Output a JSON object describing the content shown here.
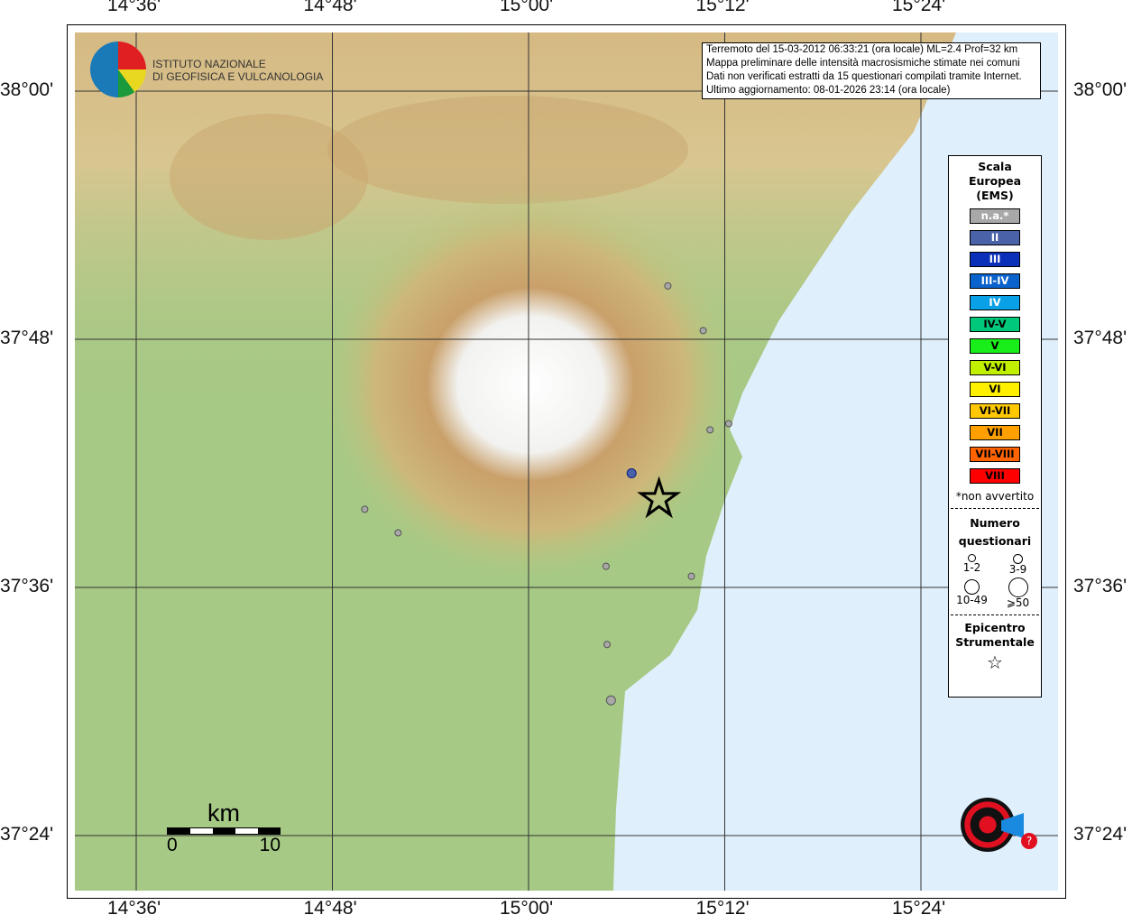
{
  "axes": {
    "lon_ticks": [
      "14°36'",
      "14°48'",
      "15°00'",
      "15°12'",
      "15°24'"
    ],
    "lat_ticks": [
      "38°00'",
      "37°48'",
      "37°36'",
      "37°24'"
    ]
  },
  "info": {
    "lines": [
      "Terremoto del 15-03-2012 06:33:21 (ora locale) ML=2.4 Prof=32 km",
      "Mappa preliminare delle intensità macrosismiche stimate nei comuni",
      "Dati non verificati estratti da 15 questionari compilati tramite Internet.",
      "Ultimo aggiornamento: 08-01-2026 23:14 (ora locale)"
    ]
  },
  "logo_ingv": {
    "line1": "ISTITUTO NAZIONALE",
    "line2": "DI GEOFISICA E VULCANOLOGIA"
  },
  "logo_hsit": "www.haisentitoilterremoto.it",
  "legend": {
    "title": [
      "Scala",
      "Europea",
      "(EMS)"
    ],
    "classes": [
      {
        "label": "n.a.*",
        "color": "#a8a8a8",
        "text": "#fff"
      },
      {
        "label": "II",
        "color": "#4a62a8",
        "text": "#fff"
      },
      {
        "label": "III",
        "color": "#0a2fb8",
        "text": "#fff"
      },
      {
        "label": "III-IV",
        "color": "#0a62cc",
        "text": "#fff"
      },
      {
        "label": "IV",
        "color": "#0aa0e8",
        "text": "#fff"
      },
      {
        "label": "IV-V",
        "color": "#00c87a",
        "text": "#000"
      },
      {
        "label": "V",
        "color": "#1aee1a",
        "text": "#000"
      },
      {
        "label": "V-VI",
        "color": "#c0f000",
        "text": "#000"
      },
      {
        "label": "VI",
        "color": "#fff000",
        "text": "#000"
      },
      {
        "label": "VI-VII",
        "color": "#ffc800",
        "text": "#000"
      },
      {
        "label": "VII",
        "color": "#ffa000",
        "text": "#000"
      },
      {
        "label": "VII-VIII",
        "color": "#ff6400",
        "text": "#000"
      },
      {
        "label": "VIII",
        "color": "#ff0000",
        "text": "#000"
      }
    ],
    "note": "*non avvertito",
    "count_title": [
      "Numero",
      "questionari"
    ],
    "count_classes": [
      "1-2",
      "3-9",
      "10-49",
      "⩾50"
    ],
    "epi_title": [
      "Epicentro",
      "Strumentale"
    ]
  },
  "scalebar": {
    "unit": "km",
    "min": "0",
    "max": "10"
  },
  "epicenter": {
    "lon": 15.133,
    "lat": 37.671
  },
  "points": [
    {
      "lon": 15.142,
      "lat": 37.843,
      "cls": "n.a.*",
      "n": "1-2"
    },
    {
      "lon": 15.178,
      "lat": 37.807,
      "cls": "n.a.*",
      "n": "1-2"
    },
    {
      "lon": 15.185,
      "lat": 37.727,
      "cls": "n.a.*",
      "n": "1-2"
    },
    {
      "lon": 15.204,
      "lat": 37.732,
      "cls": "n.a.*",
      "n": "1-2"
    },
    {
      "lon": 14.833,
      "lat": 37.663,
      "cls": "n.a.*",
      "n": "1-2"
    },
    {
      "lon": 14.867,
      "lat": 37.644,
      "cls": "n.a.*",
      "n": "1-2"
    },
    {
      "lon": 15.079,
      "lat": 37.617,
      "cls": "n.a.*",
      "n": "1-2"
    },
    {
      "lon": 15.166,
      "lat": 37.609,
      "cls": "n.a.*",
      "n": "1-2"
    },
    {
      "lon": 15.08,
      "lat": 37.554,
      "cls": "n.a.*",
      "n": "1-2"
    },
    {
      "lon": 15.084,
      "lat": 37.509,
      "cls": "n.a.*",
      "n": "3-9"
    },
    {
      "lon": 15.105,
      "lat": 37.692,
      "cls": "II",
      "n": "1-2"
    }
  ],
  "colors": {
    "sea": "#dff0fc",
    "land": "#9cc47e",
    "mountain": "#c79a5a"
  }
}
